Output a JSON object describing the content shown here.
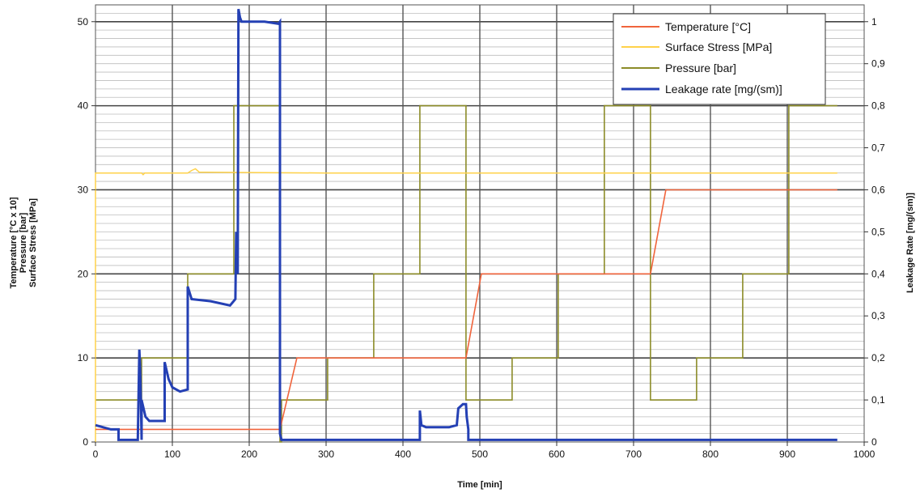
{
  "chart_data": {
    "type": "line",
    "title": "",
    "xlabel": "Time [min]",
    "ylabel_left": [
      "Temperature [°C x 10]",
      "Pressure [bar]",
      "Surface Stress [MPa]"
    ],
    "ylabel_right": "Leakage Rate [mg/(sm)]",
    "xlim": [
      0,
      1000
    ],
    "ylim_left": [
      0,
      52
    ],
    "ylim_right": [
      0,
      1.04
    ],
    "x_ticks": [
      0,
      100,
      200,
      300,
      400,
      500,
      600,
      700,
      800,
      900,
      1000
    ],
    "x_tick_labels": [
      "0",
      "100",
      "200",
      "300",
      "400",
      "500",
      "600",
      "700",
      "800",
      "900",
      "1000"
    ],
    "y_left_ticks": [
      0,
      10,
      20,
      30,
      40,
      50
    ],
    "y_left_tick_labels": [
      "0",
      "10",
      "20",
      "30",
      "40",
      "50"
    ],
    "y_right_ticks": [
      0,
      0.1,
      0.2,
      0.3,
      0.4,
      0.5,
      0.6,
      0.7,
      0.8,
      0.9,
      1.0
    ],
    "y_right_tick_labels": [
      "0",
      "0,1",
      "0,2",
      "0,3",
      "0,4",
      "0,5",
      "0,6",
      "0,7",
      "0,8",
      "0,9",
      "1"
    ],
    "grid": "on",
    "legend_position": "top-right",
    "series": [
      {
        "name": "Temperature [°C]",
        "color": "#f0643c",
        "axis": "left",
        "x": [
          0,
          240,
          240,
          262,
          302,
          302,
          482,
          502,
          542,
          542,
          722,
          742,
          965
        ],
        "y": [
          1.5,
          1.5,
          1.5,
          10,
          10,
          10,
          10,
          20,
          20,
          20,
          20,
          30,
          30
        ]
      },
      {
        "name": "Surface Stress [MPa]",
        "color": "#ffd24a",
        "axis": "left",
        "x": [
          0,
          0,
          2,
          60,
          62,
          64,
          120,
          125,
          130,
          135,
          300,
          965
        ],
        "y": [
          0,
          32,
          32,
          32,
          31.8,
          32,
          32,
          32.3,
          32.5,
          32.1,
          32,
          32
        ]
      },
      {
        "name": "Pressure [bar]",
        "color": "#8c8c28",
        "axis": "left",
        "x": [
          0,
          60,
          60,
          120,
          120,
          180,
          180,
          240,
          240,
          242,
          242,
          262,
          262,
          302,
          302,
          362,
          362,
          422,
          422,
          482,
          482,
          542,
          542,
          602,
          602,
          662,
          662,
          722,
          722,
          782,
          782,
          842,
          842,
          902,
          902,
          965
        ],
        "y": [
          5,
          5,
          10,
          10,
          20,
          20,
          40,
          40,
          0,
          0,
          5,
          5,
          5,
          5,
          10,
          10,
          20,
          20,
          40,
          40,
          5,
          5,
          10,
          10,
          20,
          20,
          40,
          40,
          5,
          5,
          10,
          10,
          20,
          20,
          40,
          40
        ]
      },
      {
        "name": "Leakage rate [mg/(sm)]",
        "color": "#2440b4",
        "axis": "right",
        "x": [
          0,
          10,
          20,
          30,
          30,
          55,
          57,
          58,
          59,
          60,
          60,
          65,
          70,
          90,
          90,
          95,
          100,
          110,
          120,
          120,
          125,
          150,
          175,
          182,
          183,
          185,
          186,
          188,
          190,
          200,
          220,
          238,
          240,
          240,
          242,
          422,
          422,
          424,
          430,
          460,
          470,
          472,
          478,
          482,
          483,
          485,
          485,
          965
        ],
        "y": [
          0.04,
          0.035,
          0.03,
          0.03,
          0.005,
          0.005,
          0.22,
          0.18,
          0.1,
          0.005,
          0.1,
          0.06,
          0.05,
          0.05,
          0.19,
          0.15,
          0.13,
          0.12,
          0.125,
          0.37,
          0.34,
          0.335,
          0.325,
          0.34,
          0.5,
          0.4,
          1.03,
          1.01,
          1.0,
          1.0,
          1.0,
          0.995,
          1.0,
          0.02,
          0.005,
          0.005,
          0.075,
          0.04,
          0.035,
          0.035,
          0.04,
          0.08,
          0.09,
          0.09,
          0.06,
          0.03,
          0.005,
          0.005
        ]
      }
    ]
  }
}
